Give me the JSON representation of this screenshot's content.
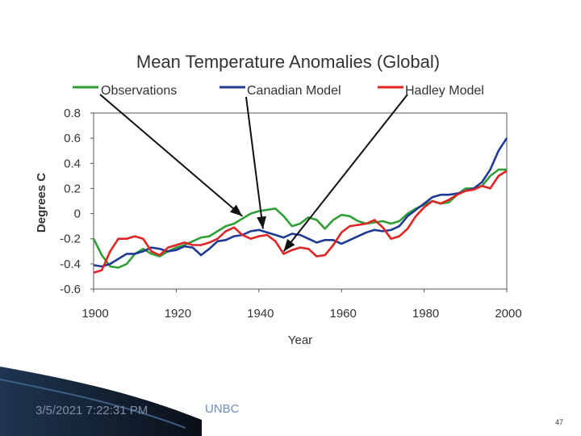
{
  "slide": {
    "footer_date": "3/5/2021 7:22:31 PM",
    "footer_org": "UNBC",
    "page_number": "47"
  },
  "chart_data": {
    "type": "line",
    "title": "Mean Temperature Anomalies (Global)",
    "xlabel": "Year",
    "ylabel": "Degrees C",
    "xlim": [
      1900,
      2000
    ],
    "ylim": [
      -0.6,
      0.8
    ],
    "xticks": [
      1900,
      1920,
      1940,
      1960,
      1980,
      2000
    ],
    "yticks": [
      0.8,
      0.6,
      0.4,
      0.2,
      0,
      -0.2,
      -0.4,
      -0.6
    ],
    "ytick_labels": [
      "0.8",
      "0.6",
      "0.4",
      "0.2",
      "0",
      "-0.2",
      "-0.4",
      "-0.6"
    ],
    "grid": false,
    "legend": "top",
    "series": [
      {
        "name": "Observations",
        "color": "#2e9e35",
        "x": [
          1900,
          1902,
          1904,
          1906,
          1908,
          1910,
          1912,
          1914,
          1916,
          1918,
          1920,
          1922,
          1924,
          1926,
          1928,
          1930,
          1932,
          1934,
          1936,
          1938,
          1940,
          1942,
          1944,
          1946,
          1948,
          1950,
          1952,
          1954,
          1956,
          1958,
          1960,
          1962,
          1964,
          1966,
          1968,
          1970,
          1972,
          1974,
          1976,
          1978,
          1980,
          1982,
          1984,
          1986,
          1988,
          1990,
          1992,
          1994,
          1996,
          1998,
          2000
        ],
        "values": [
          -0.2,
          -0.33,
          -0.42,
          -0.43,
          -0.4,
          -0.32,
          -0.28,
          -0.32,
          -0.34,
          -0.3,
          -0.27,
          -0.25,
          -0.22,
          -0.19,
          -0.18,
          -0.14,
          -0.1,
          -0.08,
          -0.04,
          0.0,
          0.02,
          0.03,
          0.04,
          -0.02,
          -0.1,
          -0.08,
          -0.03,
          -0.05,
          -0.12,
          -0.05,
          -0.01,
          -0.02,
          -0.06,
          -0.08,
          -0.07,
          -0.06,
          -0.08,
          -0.06,
          0.0,
          0.04,
          0.07,
          0.1,
          0.08,
          0.09,
          0.15,
          0.2,
          0.2,
          0.22,
          0.3,
          0.35,
          0.35
        ]
      },
      {
        "name": "Canadian Model",
        "color": "#1f3a93",
        "x": [
          1900,
          1902,
          1904,
          1906,
          1908,
          1910,
          1912,
          1914,
          1916,
          1918,
          1920,
          1922,
          1924,
          1926,
          1928,
          1930,
          1932,
          1934,
          1936,
          1938,
          1940,
          1942,
          1944,
          1946,
          1948,
          1950,
          1952,
          1954,
          1956,
          1958,
          1960,
          1962,
          1964,
          1966,
          1968,
          1970,
          1972,
          1974,
          1976,
          1978,
          1980,
          1982,
          1984,
          1986,
          1988,
          1990,
          1992,
          1994,
          1996,
          1998,
          2000
        ],
        "values": [
          -0.41,
          -0.42,
          -0.4,
          -0.36,
          -0.32,
          -0.32,
          -0.3,
          -0.27,
          -0.28,
          -0.3,
          -0.29,
          -0.26,
          -0.27,
          -0.33,
          -0.28,
          -0.22,
          -0.21,
          -0.18,
          -0.17,
          -0.14,
          -0.13,
          -0.15,
          -0.17,
          -0.19,
          -0.16,
          -0.17,
          -0.2,
          -0.23,
          -0.21,
          -0.21,
          -0.24,
          -0.21,
          -0.18,
          -0.15,
          -0.13,
          -0.14,
          -0.13,
          -0.1,
          -0.02,
          0.03,
          0.08,
          0.13,
          0.15,
          0.15,
          0.16,
          0.18,
          0.2,
          0.25,
          0.35,
          0.5,
          0.6
        ]
      },
      {
        "name": "Hadley Model",
        "color": "#e02424",
        "x": [
          1900,
          1902,
          1904,
          1906,
          1908,
          1910,
          1912,
          1914,
          1916,
          1918,
          1920,
          1922,
          1924,
          1926,
          1928,
          1930,
          1932,
          1934,
          1936,
          1938,
          1940,
          1942,
          1944,
          1946,
          1948,
          1950,
          1952,
          1954,
          1956,
          1958,
          1960,
          1962,
          1964,
          1966,
          1968,
          1970,
          1972,
          1974,
          1976,
          1978,
          1980,
          1982,
          1984,
          1986,
          1988,
          1990,
          1992,
          1994,
          1996,
          1998,
          2000
        ],
        "values": [
          -0.47,
          -0.45,
          -0.3,
          -0.2,
          -0.2,
          -0.18,
          -0.2,
          -0.3,
          -0.33,
          -0.27,
          -0.25,
          -0.23,
          -0.25,
          -0.25,
          -0.23,
          -0.2,
          -0.14,
          -0.11,
          -0.17,
          -0.2,
          -0.18,
          -0.17,
          -0.22,
          -0.32,
          -0.29,
          -0.27,
          -0.28,
          -0.34,
          -0.33,
          -0.25,
          -0.15,
          -0.1,
          -0.09,
          -0.08,
          -0.05,
          -0.11,
          -0.2,
          -0.18,
          -0.12,
          -0.02,
          0.05,
          0.1,
          0.08,
          0.11,
          0.15,
          0.18,
          0.19,
          0.22,
          0.2,
          0.3,
          0.34
        ]
      }
    ],
    "annotations": [
      {
        "label": "arrow from Observations",
        "from_series": "Observations",
        "to_series": "Observations",
        "to_x": 1936
      },
      {
        "label": "arrow from Canadian Model",
        "from_series": "Canadian Model",
        "to_series": "Canadian Model",
        "to_x": 1941
      },
      {
        "label": "arrow from Hadley Model",
        "from_series": "Hadley Model",
        "to_series": "Hadley Model",
        "to_x": 1946
      }
    ]
  }
}
